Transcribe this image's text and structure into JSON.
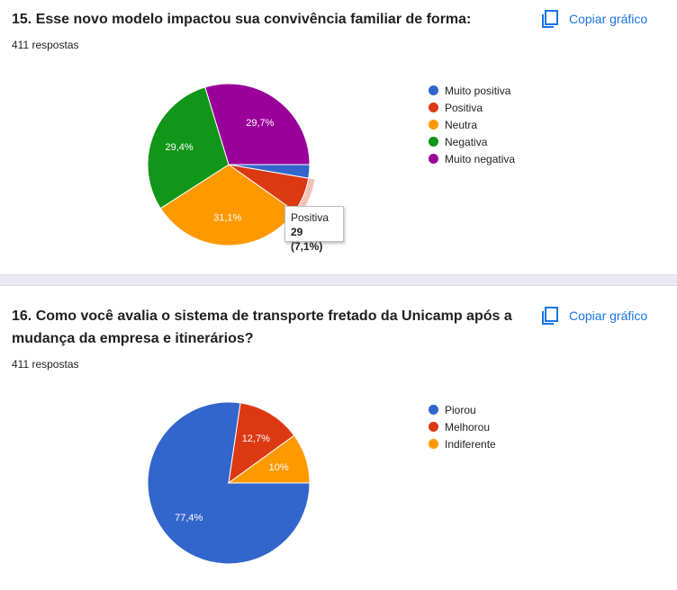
{
  "copy_label": "Copiar gráfico",
  "chart_data": [
    {
      "type": "pie",
      "title": "15. Esse novo modelo impactou sua convivência familiar de forma:",
      "response_count": "411 respostas",
      "categories": [
        "Muito positiva",
        "Positiva",
        "Neutra",
        "Negativa",
        "Muito negativa"
      ],
      "values": [
        2.7,
        7.1,
        31.1,
        29.4,
        29.7
      ],
      "colors": [
        "#3366cc",
        "#dc3912",
        "#ff9900",
        "#109618",
        "#990099"
      ],
      "labels": [
        "",
        "",
        "31,1%",
        "29,4%",
        "29,7%"
      ],
      "legend_position": "right",
      "highlighted_slice": 1,
      "tooltip": {
        "label": "Positiva",
        "value": "29 (7,1%)"
      }
    },
    {
      "type": "pie",
      "title": "16. Como você avalia o sistema de transporte fretado da Unicamp após a mudança da empresa e itinerários?",
      "response_count": "411 respostas",
      "categories": [
        "Piorou",
        "Melhorou",
        "Indiferente"
      ],
      "values": [
        77.4,
        12.7,
        10
      ],
      "colors": [
        "#3366cc",
        "#dc3912",
        "#ff9900"
      ],
      "labels": [
        "77,4%",
        "12,7%",
        "10%"
      ],
      "legend_position": "right"
    }
  ]
}
